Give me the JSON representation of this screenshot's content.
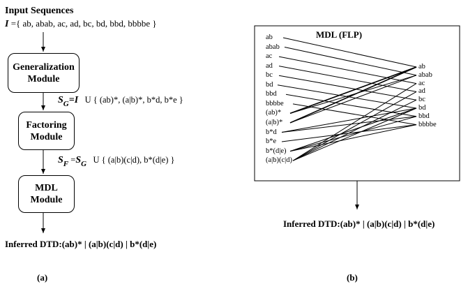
{
  "panel_a": {
    "title": "Input Sequences",
    "input_sym": "I",
    "input_eq": " ={  ab,  abab,  ac,  ad,  bc,  bd,  bbd,  bbbbe  }",
    "gen_module": [
      "Generalization",
      "Module"
    ],
    "sg_main": "S",
    "sg_sub": "G",
    "sg_eq": "=I",
    "sg_union": "U  { (ab)*,  (a|b)*,  b*d,  b*e }",
    "fact_module": [
      "Factoring",
      "Module"
    ],
    "sf_main": "S",
    "sf_sub": "F",
    "sf_eq": "=",
    "sf_rhs_main": "S",
    "sf_rhs_sub": "G",
    "sf_union": "U  { (a|b)(c|d),  b*(d|e) }",
    "mdl_module": [
      "MDL",
      "Module"
    ],
    "result": "Inferred DTD:(ab)* | (a|b)(c|d) | b*(d|e)",
    "caption": "(a)"
  },
  "panel_b": {
    "title": "MDL (FLP)",
    "left_labels": [
      "ab",
      "abab",
      "ac",
      "ad",
      "bc",
      "bd",
      "bbd",
      "bbbbe",
      "(ab)*",
      "(a|b)*",
      "b*d",
      "b*e",
      "b*(d|e)",
      "(a|b)(c|d)"
    ],
    "right_labels": [
      "ab",
      "abab",
      "ac",
      "ad",
      "bc",
      "bd",
      "bbd",
      "bbbbe"
    ],
    "result": "Inferred DTD:(ab)* | (a|b)(c|d) | b*(d|e)",
    "caption": "(b)"
  }
}
